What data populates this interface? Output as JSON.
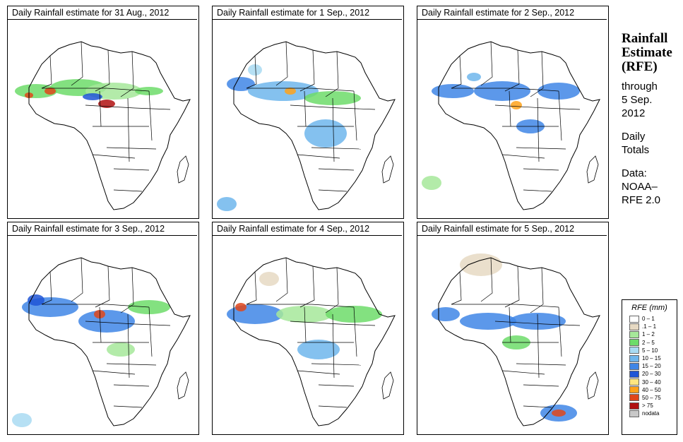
{
  "panels": [
    {
      "title": "Daily Rainfall estimate for  31 Aug., 2012"
    },
    {
      "title": "Daily Rainfall estimate for  1 Sep., 2012"
    },
    {
      "title": "Daily Rainfall estimate for  2 Sep., 2012"
    },
    {
      "title": "Daily Rainfall estimate for  3 Sep., 2012"
    },
    {
      "title": "Daily Rainfall estimate for  4 Sep., 2012"
    },
    {
      "title": "Daily Rainfall estimate for  5 Sep., 2012"
    }
  ],
  "sidebar": {
    "title_line1": "Rainfall",
    "title_line2": "Estimate",
    "title_line3": "(RFE)",
    "through": "through",
    "date_line1": "5 Sep.",
    "date_line2": "2012",
    "period_line1": "Daily",
    "period_line2": "Totals",
    "data_label": "Data:",
    "source_line1": "NOAA–",
    "source_line2": "RFE 2.0"
  },
  "legend": {
    "title": "RFE (mm)",
    "items": [
      {
        "label": "0 – 1",
        "color": "#ffffff"
      },
      {
        "label": ".1 – 1",
        "color": "#e6d9c3"
      },
      {
        "label": "1 – 2",
        "color": "#a6e89a"
      },
      {
        "label": "2 – 5",
        "color": "#6ddc6a"
      },
      {
        "label": "5 – 10",
        "color": "#a9dbf2"
      },
      {
        "label": "10 – 15",
        "color": "#6fb6ec"
      },
      {
        "label": "15 – 20",
        "color": "#3f86e6"
      },
      {
        "label": "20 – 30",
        "color": "#1f55d6"
      },
      {
        "label": "30 – 40",
        "color": "#ffe680"
      },
      {
        "label": "40 – 50",
        "color": "#ffa21a"
      },
      {
        "label": "50 – 75",
        "color": "#e0461a"
      },
      {
        "label": "> 75",
        "color": "#b01010"
      },
      {
        "label": "nodata",
        "color": "#c8c8c8"
      }
    ]
  }
}
